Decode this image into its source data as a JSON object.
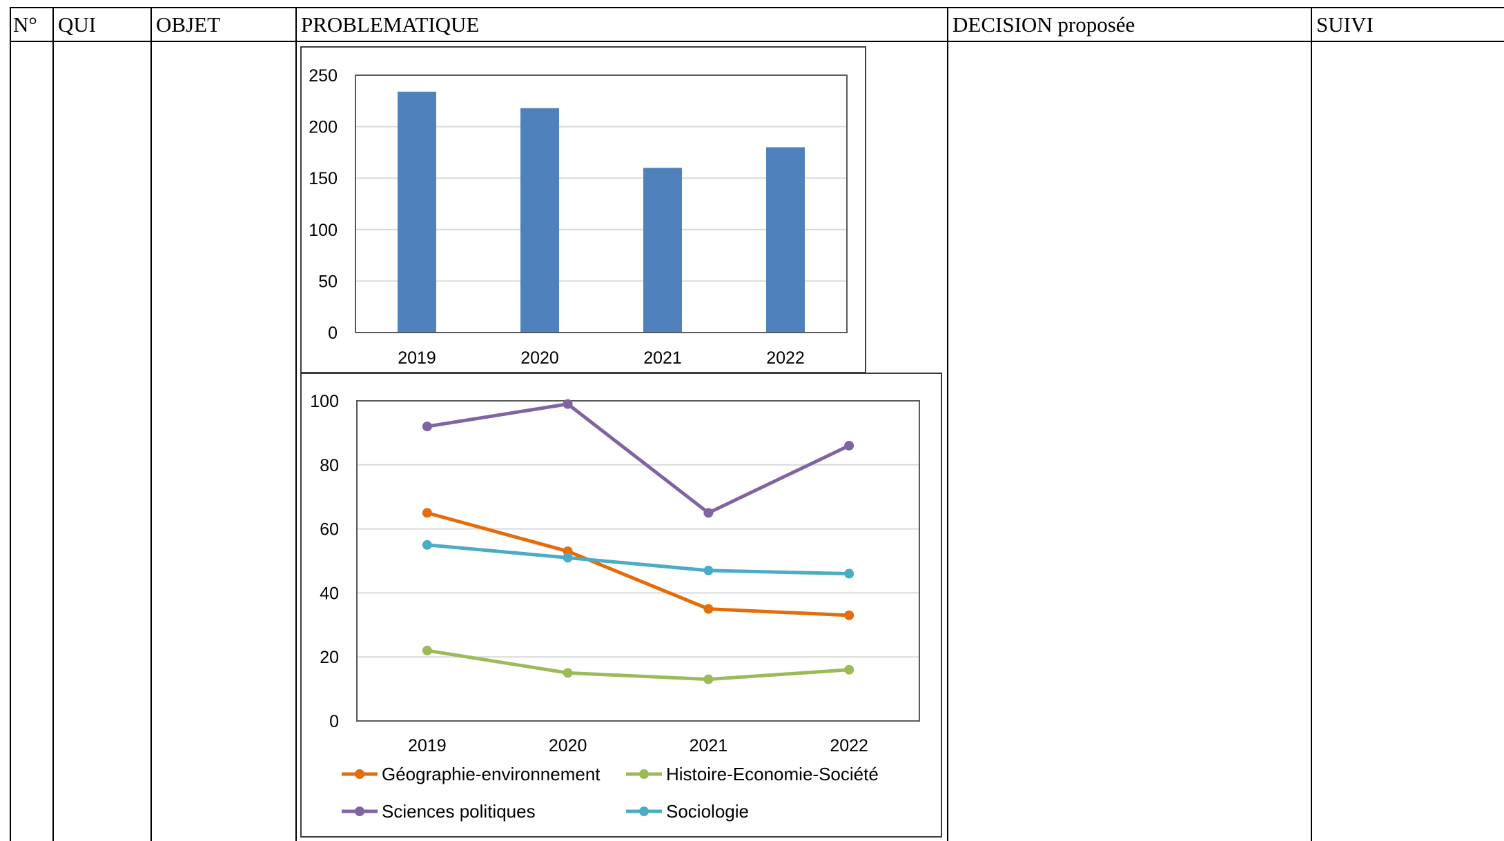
{
  "table": {
    "headers": [
      "N°",
      "QUI",
      "OBJET",
      "PROBLEMATIQUE",
      "DECISION proposée",
      "SUIVI"
    ]
  },
  "chart_data": [
    {
      "type": "bar",
      "categories": [
        "2019",
        "2020",
        "2021",
        "2022"
      ],
      "values": [
        234,
        218,
        160,
        180
      ],
      "ylim": [
        0,
        250
      ],
      "yticks": [
        0,
        50,
        100,
        150,
        200,
        250
      ],
      "grid": true,
      "color": "#4f81bd"
    },
    {
      "type": "line",
      "x": [
        "2019",
        "2020",
        "2021",
        "2022"
      ],
      "ylim": [
        0,
        100
      ],
      "yticks": [
        0,
        20,
        40,
        60,
        80,
        100
      ],
      "grid": true,
      "legend": "bottom",
      "series": [
        {
          "name": "Géographie-environnement",
          "values": [
            65,
            53,
            35,
            33
          ],
          "color": "#e46c0a"
        },
        {
          "name": "Histoire-Economie-Société",
          "values": [
            22,
            15,
            13,
            16
          ],
          "color": "#9bbb59"
        },
        {
          "name": "Sciences politiques",
          "values": [
            92,
            99,
            65,
            86
          ],
          "color": "#8064a2"
        },
        {
          "name": "Sociologie",
          "values": [
            55,
            51,
            47,
            46
          ],
          "color": "#4bacc6"
        }
      ]
    }
  ]
}
